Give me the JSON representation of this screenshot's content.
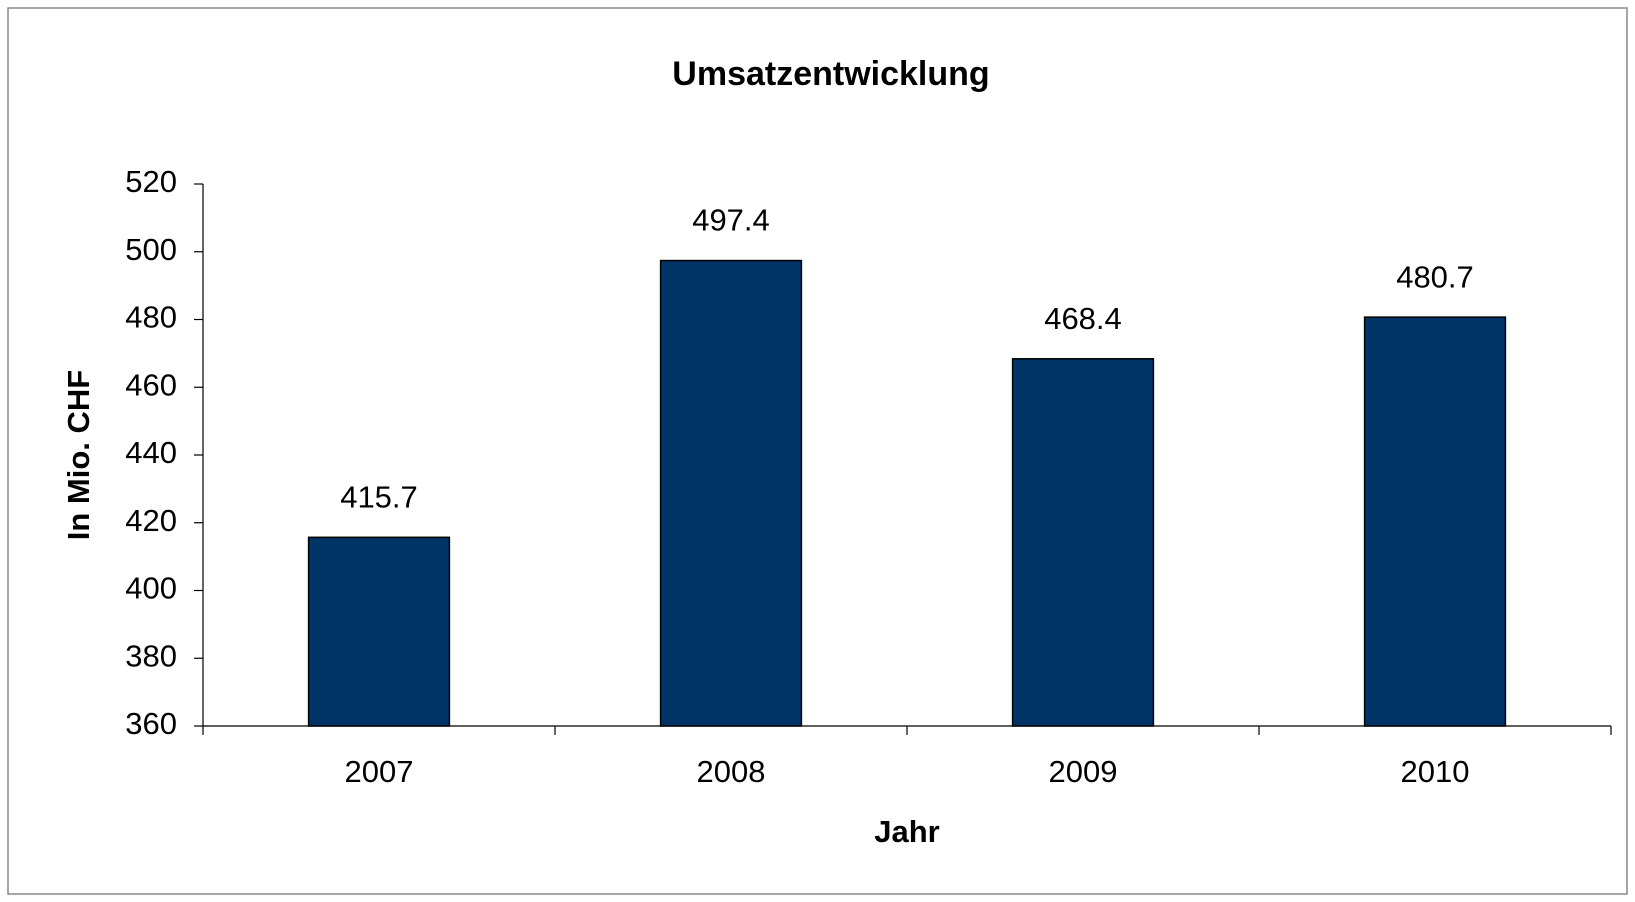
{
  "chart_data": {
    "type": "bar",
    "title": "Umsatzentwicklung",
    "x_label": "Jahr",
    "y_label": "In Mio. CHF",
    "categories": [
      "2007",
      "2008",
      "2009",
      "2010"
    ],
    "values": [
      415.7,
      497.4,
      468.4,
      480.7
    ],
    "color": "#003366",
    "ylim": [
      360,
      520
    ],
    "yticks": [
      360,
      380,
      400,
      420,
      440,
      460,
      480,
      500,
      520
    ],
    "grid": false
  }
}
